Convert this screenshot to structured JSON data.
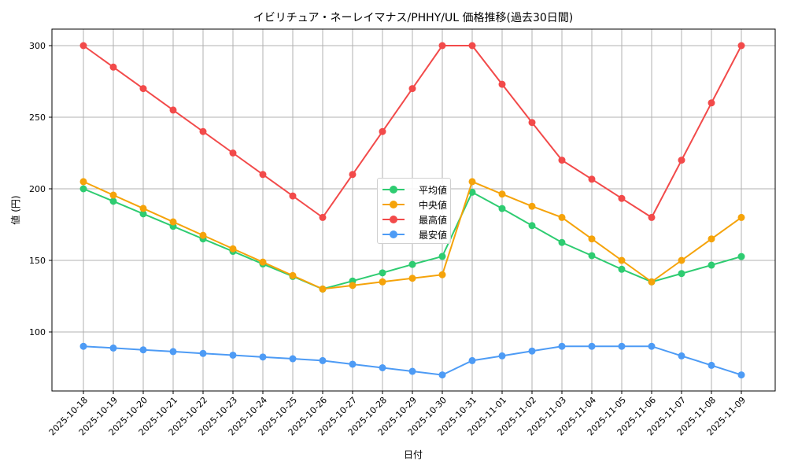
{
  "chart_data": {
    "type": "line",
    "title": "イビリチュア・ネーレイマナス/PHHY/UL 価格推移(過去30日間)",
    "xlabel": "日付",
    "ylabel": "値 (円)",
    "ylim": [
      65,
      312
    ],
    "yticks": [
      100,
      150,
      200,
      250,
      300
    ],
    "grid": true,
    "legend_position": "center",
    "categories": [
      "2025-10-18",
      "2025-10-19",
      "2025-10-20",
      "2025-10-21",
      "2025-10-22",
      "2025-10-23",
      "2025-10-24",
      "2025-10-25",
      "2025-10-26",
      "2025-10-27",
      "2025-10-28",
      "2025-10-29",
      "2025-10-30",
      "2025-10-31",
      "2025-11-01",
      "2025-11-02",
      "2025-11-03",
      "2025-11-04",
      "2025-11-05",
      "2025-11-06",
      "2025-11-07",
      "2025-11-08",
      "2025-11-09"
    ],
    "series": [
      {
        "name": "平均値",
        "color": "#2ecc71",
        "values": [
          200,
          191.3,
          182.5,
          173.8,
          165,
          156.3,
          147.5,
          138.8,
          130,
          135.6,
          141.3,
          147.2,
          152.8,
          197.6,
          186.2,
          174.3,
          162.5,
          153.3,
          143.8,
          135,
          140.8,
          146.7,
          152.7
        ]
      },
      {
        "name": "中央値",
        "color": "#f5a30a",
        "values": [
          205,
          195.6,
          186.3,
          176.9,
          167.5,
          158.1,
          148.8,
          139.4,
          130,
          132.5,
          135,
          137.5,
          140,
          205,
          196.3,
          187.8,
          180,
          165,
          150,
          135,
          150,
          165,
          180
        ]
      },
      {
        "name": "最高値",
        "color": "#f24a4a",
        "values": [
          300,
          285,
          270,
          255,
          240,
          225,
          210,
          195,
          180,
          210,
          240,
          270,
          300,
          300,
          273,
          246.3,
          220,
          206.7,
          193.3,
          180,
          220,
          260,
          300
        ]
      },
      {
        "name": "最安値",
        "color": "#4d9bf5",
        "values": [
          90,
          88.8,
          87.5,
          86.3,
          85,
          83.8,
          82.5,
          81.3,
          80,
          77.5,
          75,
          72.5,
          70,
          80,
          83.3,
          86.7,
          90,
          90,
          90,
          90,
          83.3,
          76.7,
          70
        ]
      }
    ]
  }
}
